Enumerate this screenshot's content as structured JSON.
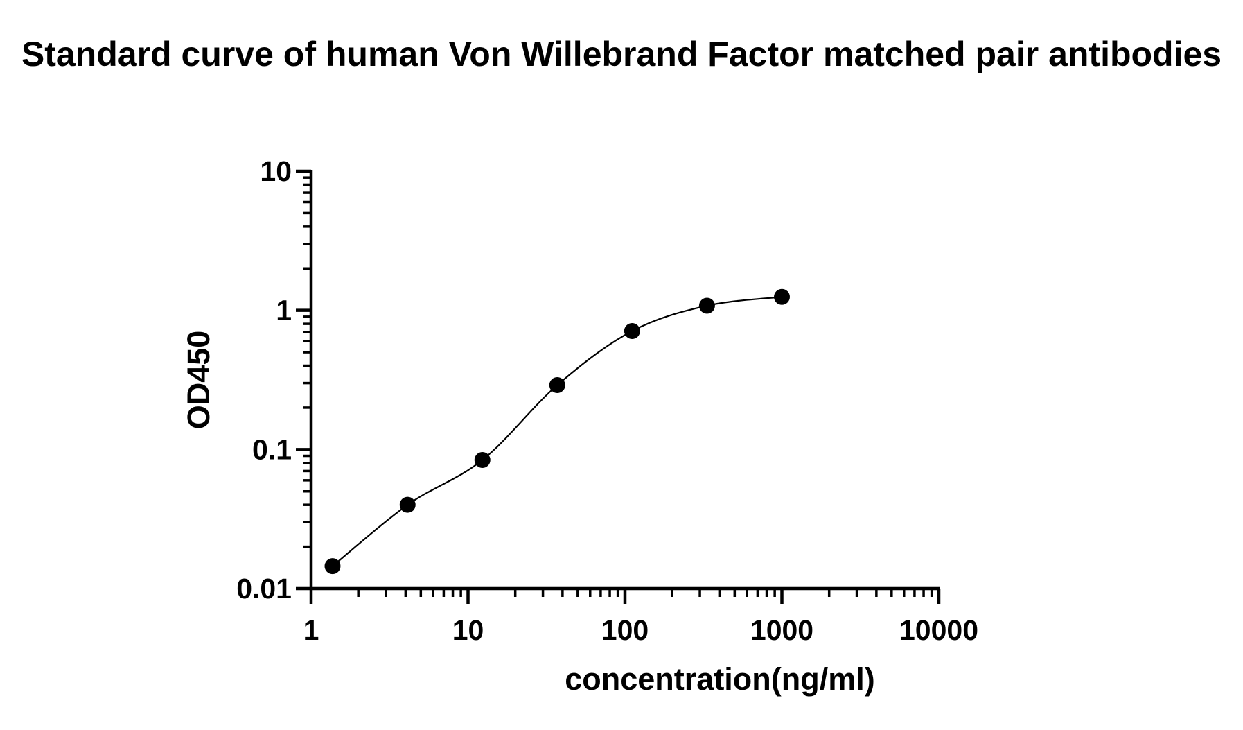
{
  "chart_data": {
    "type": "scatter",
    "title": "Standard curve of human Von Willebrand Factor matched pair antibodies",
    "x_label": "concentration(ng/ml)",
    "y_label": "OD450",
    "x": [
      1.37,
      4.12,
      12.35,
      37.04,
      111.1,
      333.3,
      1000
    ],
    "series": [
      {
        "color": "#000000",
        "values": [
          0.0145,
          0.04,
          0.084,
          0.29,
          0.71,
          1.08,
          1.25
        ]
      }
    ],
    "fit_curve": true,
    "x_log": true,
    "y_log": true,
    "xlim": [
      1,
      10000
    ],
    "xticks": [
      1,
      10,
      100,
      1000,
      10000
    ],
    "ylim": [
      0.01,
      10
    ],
    "yticks": [
      0.01,
      0.1,
      1,
      10
    ],
    "minor_ticks": true,
    "grid": false
  }
}
